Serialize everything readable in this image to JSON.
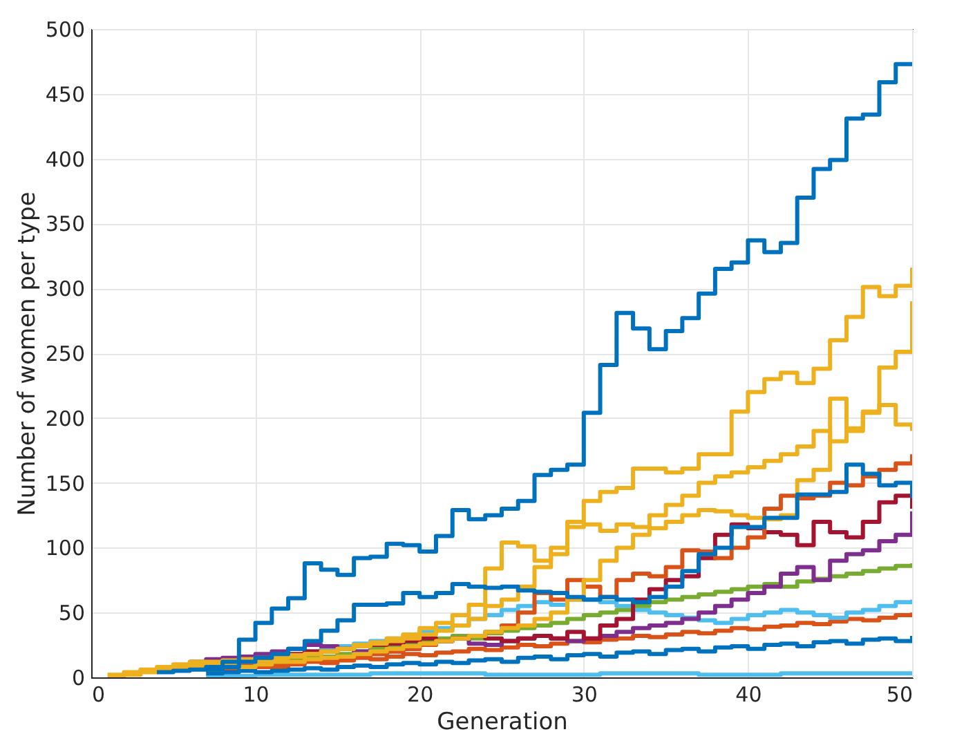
{
  "chart_data": {
    "type": "step",
    "xlabel": "Generation",
    "ylabel": "Number of women per type",
    "x": [
      1,
      2,
      3,
      4,
      5,
      6,
      7,
      8,
      9,
      10,
      11,
      12,
      13,
      14,
      15,
      16,
      17,
      18,
      19,
      20,
      21,
      22,
      23,
      24,
      25,
      26,
      27,
      28,
      29,
      30,
      31,
      32,
      33,
      34,
      35,
      36,
      37,
      38,
      39,
      40,
      41,
      42,
      43,
      44,
      45,
      46,
      47,
      48,
      49,
      50
    ],
    "xlim": [
      0,
      50
    ],
    "xticks": [
      0,
      10,
      20,
      30,
      40,
      50
    ],
    "ylim": [
      0,
      500
    ],
    "yticks": [
      0,
      50,
      100,
      150,
      200,
      250,
      300,
      350,
      400,
      450,
      500
    ],
    "grid": true,
    "line_style": "solid",
    "marker": "none",
    "series": [
      {
        "color": "#4dbeee",
        "values": [
          null,
          null,
          null,
          null,
          null,
          null,
          1,
          1,
          1,
          2,
          2,
          2,
          2,
          2,
          2,
          2,
          3,
          3,
          3,
          3,
          3,
          3,
          3,
          2,
          2,
          2,
          2,
          2,
          2,
          2,
          3,
          3,
          3,
          3,
          3,
          3,
          2,
          2,
          2,
          2,
          2,
          3,
          3,
          3,
          3,
          3,
          3,
          3,
          3,
          3
        ]
      },
      {
        "color": "#d95319",
        "values": [
          null,
          null,
          null,
          null,
          null,
          null,
          5,
          6,
          7,
          8,
          8,
          10,
          12,
          11,
          13,
          15,
          14,
          16,
          18,
          17,
          19,
          20,
          22,
          21,
          23,
          25,
          24,
          26,
          28,
          27,
          29,
          30,
          32,
          31,
          33,
          35,
          34,
          36,
          38,
          37,
          39,
          40,
          42,
          41,
          43,
          45,
          44,
          46,
          48,
          50
        ]
      },
      {
        "color": "#0072bd",
        "values": [
          null,
          null,
          null,
          null,
          null,
          null,
          3,
          4,
          5,
          4,
          5,
          6,
          7,
          6,
          8,
          9,
          8,
          10,
          11,
          10,
          12,
          11,
          13,
          14,
          12,
          15,
          16,
          14,
          17,
          18,
          16,
          19,
          20,
          18,
          21,
          22,
          20,
          23,
          24,
          22,
          25,
          26,
          24,
          27,
          28,
          26,
          29,
          30,
          28,
          32
        ]
      },
      {
        "color": "#4dbeee",
        "values": [
          null,
          null,
          null,
          null,
          null,
          null,
          null,
          null,
          null,
          null,
          null,
          null,
          20,
          22,
          24,
          26,
          28,
          30,
          32,
          35,
          38,
          40,
          45,
          48,
          52,
          55,
          58,
          56,
          60,
          60,
          58,
          55,
          52,
          50,
          48,
          46,
          44,
          42,
          45,
          48,
          50,
          52,
          50,
          48,
          46,
          50,
          52,
          55,
          58,
          60
        ]
      },
      {
        "color": "#77ac30",
        "values": [
          null,
          null,
          null,
          null,
          null,
          null,
          6,
          8,
          10,
          12,
          12,
          14,
          15,
          16,
          18,
          20,
          22,
          24,
          26,
          28,
          30,
          32,
          30,
          34,
          36,
          38,
          40,
          42,
          45,
          48,
          50,
          52,
          55,
          58,
          60,
          62,
          64,
          66,
          68,
          70,
          72,
          70,
          74,
          76,
          78,
          80,
          82,
          84,
          86,
          88
        ]
      },
      {
        "color": "#7e2f8e",
        "values": [
          null,
          null,
          null,
          null,
          null,
          12,
          14,
          15,
          16,
          18,
          20,
          22,
          25,
          24,
          22,
          20,
          18,
          20,
          22,
          25,
          28,
          30,
          26,
          25,
          28,
          30,
          32,
          30,
          28,
          30,
          32,
          35,
          38,
          40,
          42,
          45,
          50,
          55,
          60,
          65,
          70,
          80,
          85,
          75,
          90,
          95,
          98,
          105,
          110,
          128
        ]
      },
      {
        "color": "#a2142f",
        "values": [
          null,
          null,
          null,
          null,
          null,
          null,
          8,
          10,
          12,
          14,
          16,
          18,
          20,
          20,
          22,
          24,
          25,
          26,
          28,
          30,
          28,
          30,
          32,
          30,
          28,
          30,
          32,
          30,
          35,
          30,
          40,
          45,
          60,
          68,
          75,
          78,
          92,
          110,
          118,
          115,
          112,
          110,
          102,
          120,
          112,
          108,
          120,
          135,
          140,
          130
        ]
      },
      {
        "color": "#d95319",
        "values": [
          null,
          null,
          null,
          null,
          null,
          null,
          7,
          8,
          9,
          10,
          11,
          12,
          13,
          14,
          15,
          16,
          18,
          20,
          22,
          25,
          28,
          30,
          32,
          35,
          40,
          50,
          65,
          60,
          75,
          70,
          62,
          75,
          80,
          78,
          85,
          98,
          97,
          92,
          100,
          108,
          130,
          140,
          138,
          140,
          150,
          148,
          155,
          160,
          165,
          172
        ]
      },
      {
        "color": "#edb120",
        "values": [
          null,
          null,
          null,
          null,
          null,
          null,
          7,
          8,
          8,
          10,
          12,
          12,
          14,
          15,
          16,
          18,
          20,
          22,
          24,
          26,
          28,
          30,
          32,
          35,
          38,
          40,
          45,
          50,
          60,
          75,
          90,
          100,
          110,
          115,
          120,
          125,
          129,
          128,
          125,
          123,
          122,
          125,
          152,
          160,
          215,
          190,
          205,
          210,
          195,
          190
        ]
      },
      {
        "color": "#edb120",
        "values": [
          2,
          4,
          6,
          8,
          10,
          12,
          12,
          13,
          14,
          15,
          16,
          16,
          18,
          20,
          22,
          24,
          26,
          28,
          30,
          33,
          36,
          40,
          45,
          55,
          60,
          70,
          85,
          100,
          116,
          118,
          113,
          118,
          116,
          125,
          133,
          140,
          150,
          155,
          158,
          162,
          167,
          172,
          178,
          190,
          182,
          192,
          204,
          239,
          251,
          290
        ]
      },
      {
        "color": "#edb120",
        "values": [
          1,
          2,
          4,
          6,
          8,
          9,
          10,
          11,
          12,
          13,
          15,
          17,
          18,
          20,
          22,
          25,
          27,
          30,
          33,
          38,
          42,
          48,
          56,
          84,
          104,
          101,
          90,
          95,
          120,
          136,
          143,
          146,
          161,
          161,
          158,
          161,
          172,
          172,
          205,
          220,
          230,
          235,
          227,
          238,
          260,
          278,
          301,
          294,
          302,
          316
        ]
      },
      {
        "color": "#0072bd",
        "values": [
          null,
          null,
          null,
          null,
          null,
          null,
          6,
          8,
          12,
          15,
          18,
          22,
          28,
          36,
          44,
          56,
          56,
          57,
          65,
          62,
          65,
          72,
          70,
          69,
          70,
          67,
          66,
          65,
          62,
          60,
          62,
          60,
          58,
          62,
          70,
          82,
          95,
          100,
          116,
          116,
          123,
          123,
          141,
          141,
          143,
          164,
          157,
          148,
          150,
          138
        ]
      },
      {
        "color": "#0072bd",
        "values": [
          null,
          null,
          null,
          4,
          5,
          6,
          8,
          12,
          29,
          42,
          53,
          61,
          88,
          83,
          79,
          92,
          93,
          103,
          102,
          97,
          109,
          129,
          122,
          125,
          130,
          136,
          156,
          160,
          164,
          204,
          241,
          281,
          269,
          253,
          267,
          277,
          296,
          315,
          320,
          337,
          328,
          335,
          370,
          392,
          399,
          431,
          434,
          459,
          473,
          473
        ]
      }
    ]
  }
}
